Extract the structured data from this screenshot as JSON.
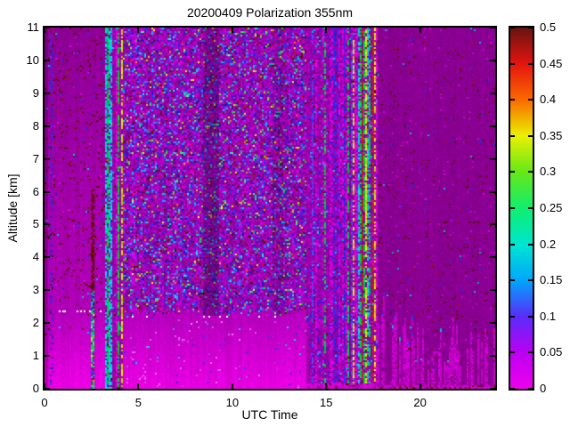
{
  "figure": {
    "background": "#ffffff"
  },
  "chart_data": {
    "type": "heatmap",
    "title": "20200409 Polarization 355nm",
    "xlabel": "UTC Time",
    "ylabel": "Altitude [km]",
    "xlim": [
      0,
      24
    ],
    "ylim": [
      0,
      11
    ],
    "xticks": [
      0,
      5,
      10,
      15,
      20
    ],
    "xtick_labels": [
      "0",
      "5",
      "10",
      "15",
      "20"
    ],
    "yticks": [
      0,
      1,
      2,
      3,
      4,
      5,
      6,
      7,
      8,
      9,
      10,
      11
    ],
    "ytick_labels": [
      "0",
      "1",
      "2",
      "3",
      "4",
      "5",
      "6",
      "7",
      "8",
      "9",
      "10",
      "11"
    ],
    "grid_on": false,
    "legend": "none",
    "colorbar": {
      "position": "right",
      "vmin": 0,
      "vmax": 0.5,
      "ticks": [
        0,
        0.05,
        0.1,
        0.15,
        0.2,
        0.25,
        0.3,
        0.35,
        0.4,
        0.45,
        0.5
      ],
      "tick_labels": [
        "0",
        "0.05",
        "0.1",
        "0.15",
        "0.2",
        "0.25",
        "0.3",
        "0.35",
        "0.4",
        "0.45",
        "0.5"
      ],
      "stops": [
        [
          0.0,
          "#ee00ee"
        ],
        [
          0.05,
          "#bc00f2"
        ],
        [
          0.1,
          "#5a2cfa"
        ],
        [
          0.15,
          "#00a6fc"
        ],
        [
          0.2,
          "#00e6d0"
        ],
        [
          0.25,
          "#10ee6e"
        ],
        [
          0.3,
          "#66e818"
        ],
        [
          0.35,
          "#eaf000"
        ],
        [
          0.4,
          "#fa6a00"
        ],
        [
          0.45,
          "#e41410"
        ],
        [
          0.5,
          "#661410"
        ]
      ]
    },
    "seed": 20200409,
    "grid": {
      "cols": 253,
      "rows": 203
    },
    "layers": [
      {
        "kind": "vgrad",
        "name": "left-upper-gradient",
        "t": [
          0,
          3.25
        ],
        "a": [
          2.4,
          11
        ],
        "bottom": "#b200ba",
        "top": "#8e0096",
        "jitter": 0.05,
        "col_jitter": 0.04,
        "edge_wobble": 0
      },
      {
        "kind": "vgrad",
        "name": "left-lower-gradient",
        "t": [
          0,
          3.25
        ],
        "a": [
          0,
          2.4
        ],
        "bottom": "#ee00e6",
        "top": "#b200ba",
        "jitter": 0.04,
        "col_jitter": 0.03,
        "edge_wobble": 0.1
      },
      {
        "kind": "noise",
        "name": "left-maroon-speckle",
        "t": [
          0,
          3.25
        ],
        "a": [
          3,
          11
        ],
        "palette": [
          [
            null,
            93
          ],
          [
            "#5e0c08",
            4.2
          ],
          [
            "#8c1810",
            1.2
          ],
          [
            "#2830d0",
            0.6
          ],
          [
            "#00b0d0",
            0.3
          ],
          [
            "#d800e0",
            0.7
          ]
        ],
        "jitter": 0.15
      },
      {
        "kind": "noise",
        "name": "left-maroon-speckle-low",
        "t": [
          0,
          3.25
        ],
        "a": [
          1.6,
          3
        ],
        "palette": [
          [
            null,
            96.5
          ],
          [
            "#5e0c08",
            1.8
          ],
          [
            "#b81690",
            0.7
          ],
          [
            "#2830d0",
            0.5
          ],
          [
            "#00b0d0",
            0.2
          ],
          [
            "#ff60f0",
            0.3
          ]
        ],
        "jitter": 0.15
      },
      {
        "kind": "colstripes",
        "name": "faint-indigo-line",
        "t": [
          0.3,
          0.44
        ],
        "a": [
          0,
          11
        ],
        "stripe_prob": 1,
        "col_palette": [
          [
            "#5020c8",
            1
          ]
        ],
        "gap_prob": 0.62
      },
      {
        "kind": "noise",
        "name": "calib-stripe-green",
        "t": [
          2.48,
          2.68
        ],
        "a": [
          0,
          2.62
        ],
        "palette": [
          [
            "#00d838",
            30
          ],
          [
            "#00c8e0",
            16
          ],
          [
            "#c8d800",
            15
          ],
          [
            "#3040f0",
            10
          ],
          [
            "#c02010",
            7
          ],
          [
            "#e000e0",
            10
          ],
          [
            "#8a0093",
            12
          ]
        ],
        "jitter": 0.15
      },
      {
        "kind": "noise",
        "name": "calib-stripe-maroon",
        "t": [
          2.48,
          2.66
        ],
        "a": [
          2.62,
          6.1
        ],
        "palette": [
          [
            "#5f0d08",
            62
          ],
          [
            "#7a1008",
            12
          ],
          [
            null,
            26
          ]
        ],
        "jitter": 0.18
      },
      {
        "kind": "noise",
        "name": "calib-stripe-bluetip",
        "t": [
          2.48,
          2.68
        ],
        "a": [
          2.35,
          3.0
        ],
        "palette": [
          [
            "#2838e8",
            35
          ],
          [
            "#00b8e0",
            22
          ],
          [
            "#00d040",
            12
          ],
          [
            "#5f0d08",
            18
          ],
          [
            null,
            13
          ]
        ],
        "jitter": 0.15
      },
      {
        "kind": "colstripes",
        "name": "morning-stripes",
        "t": [
          3.25,
          4.2
        ],
        "a": [
          0,
          11
        ],
        "stripe_prob": 1,
        "col_palette": [
          [
            "#00d024",
            20
          ],
          [
            "#c8d800",
            12
          ],
          [
            "#00c8e0",
            12
          ],
          [
            "#2840f0",
            14
          ],
          [
            "#c82010",
            5
          ],
          [
            "#a000b0",
            30
          ],
          [
            "#e000e0",
            7
          ]
        ],
        "gap_prob": 0.33,
        "gap_palette": [
          [
            "#9800a8",
            58
          ],
          [
            "#b400c4",
            24
          ],
          [
            "#2828e0",
            8
          ],
          [
            "#00b8d8",
            4
          ],
          [
            "#d01810",
            3
          ],
          [
            "#5e0c08",
            3
          ]
        ]
      },
      {
        "kind": "noise",
        "name": "midday-speckle",
        "t": [
          4.2,
          13.95
        ],
        "a": [
          2.2,
          11
        ],
        "palette": [
          [
            "#a800b8",
            26
          ],
          [
            "#c000cc",
            14
          ],
          [
            "#9000a0",
            12
          ],
          [
            "#7c00ac",
            8
          ],
          [
            "#d000dc",
            6
          ],
          [
            "#6a0a70",
            4
          ],
          [
            "#3232ee",
            7
          ],
          [
            "#5858ff",
            3
          ],
          [
            "#1a1ac8",
            3
          ],
          [
            "#00aaf4",
            3
          ],
          [
            "#00e0e0",
            2
          ],
          [
            "#00d868",
            1.5
          ],
          [
            "#58e428",
            1.2
          ],
          [
            "#d8e410",
            1
          ],
          [
            "#f07800",
            0.5
          ],
          [
            "#d01810",
            1
          ],
          [
            "#601008",
            2.2
          ],
          [
            "#8c2850",
            1.5
          ]
        ],
        "jitter": 0.12,
        "col_jitter": 0.05
      },
      {
        "kind": "vgrad",
        "name": "boundary-layer-band",
        "t": [
          4.2,
          14.15
        ],
        "a": [
          0,
          2.3
        ],
        "bottom": "#ea00e4",
        "top": "#b400bc",
        "jitter": 0.04,
        "col_jitter": 0.035,
        "edge_wobble": 0.12
      },
      {
        "kind": "noise",
        "name": "boundary-layer-dots",
        "t": [
          4.2,
          14.15
        ],
        "a": [
          0,
          2.2
        ],
        "palette": [
          [
            null,
            97
          ],
          [
            "#d858e0",
            1.2
          ],
          [
            "#b830d8",
            0.6
          ],
          [
            "#3038e8",
            0.6
          ],
          [
            "#00c8d8",
            0.3
          ],
          [
            "#ff80ff",
            0.3
          ]
        ],
        "jitter": 0.1
      },
      {
        "kind": "colstripes",
        "name": "afternoon-stripes-blue",
        "t": [
          13.95,
          16.4
        ],
        "a": [
          0,
          11
        ],
        "stripe_prob": 0.75,
        "col_palette": [
          [
            "#d800dc",
            26
          ],
          [
            "#2830e8",
            20
          ],
          [
            "#5048f8",
            8
          ],
          [
            "#7a00b0",
            14
          ],
          [
            "#00c830",
            8
          ],
          [
            "#00c8e0",
            6
          ],
          [
            "#9b00a8",
            18
          ]
        ],
        "gap_prob": 0.5,
        "gap_palette": [
          [
            "#9800a8",
            50
          ],
          [
            "#b400c4",
            18
          ],
          [
            "#8000a0",
            12
          ],
          [
            "#2828e8",
            8
          ],
          [
            "#d800dc",
            7
          ],
          [
            "#00b8d8",
            3
          ],
          [
            "#601008",
            2
          ]
        ]
      },
      {
        "kind": "colstripes",
        "name": "afternoon-stripes-bright",
        "t": [
          16.4,
          17.75
        ],
        "a": [
          0,
          11
        ],
        "stripe_prob": 0.9,
        "col_palette": [
          [
            "#00d030",
            18
          ],
          [
            "#00c8e0",
            14
          ],
          [
            "#2840f0",
            16
          ],
          [
            "#d8d800",
            9
          ],
          [
            "#d800dc",
            18
          ],
          [
            "#c02010",
            4
          ],
          [
            "#9b00a8",
            14
          ],
          [
            "#7a00b0",
            7
          ]
        ],
        "gap_prob": 0.38,
        "gap_palette": [
          [
            "#9800a8",
            50
          ],
          [
            "#b400c4",
            18
          ],
          [
            "#8000a0",
            12
          ],
          [
            "#2828e8",
            8
          ],
          [
            "#d800dc",
            7
          ],
          [
            "#00b8d8",
            3
          ],
          [
            "#601008",
            2
          ]
        ]
      },
      {
        "kind": "noise",
        "name": "bottom-bright-row-mid",
        "t": [
          13.95,
          17.75
        ],
        "a": [
          0,
          0.15
        ],
        "palette": [
          [
            "#d800d8",
            75
          ],
          [
            "#9800a8",
            15
          ],
          [
            "#5e0c08",
            10
          ]
        ],
        "jitter": 0.08
      },
      {
        "kind": "noise",
        "name": "evening-smooth",
        "t": [
          17.75,
          24
        ],
        "a": [
          0,
          11
        ],
        "palette": [
          [
            "#8a0092",
            96.4
          ],
          [
            "#5e0c08",
            1.6
          ],
          [
            "#981010",
            0.3
          ],
          [
            "#2830d0",
            0.4
          ],
          [
            "#00b0d0",
            0.2
          ],
          [
            "#c800d0",
            1.1
          ]
        ],
        "jitter": 0.07,
        "col_jitter": 0.03
      },
      {
        "kind": "bottomstripes",
        "name": "evening-low-returns",
        "t": [
          17.75,
          24
        ],
        "stripe_prob": 0.6,
        "color": "#c600ca",
        "h_range": [
          0.7,
          2.2
        ],
        "gap_prob": 0.15,
        "jitter": 0.12,
        "tip_prob": 0.12,
        "tip_palette": [
          [
            "#3040f0",
            0.5
          ],
          [
            "#00c0e0",
            0.3
          ],
          [
            "#00d060",
            0.2
          ]
        ],
        "tall_zone": {
          "t": [
            17.9,
            19.7
          ],
          "h_range": [
            1.3,
            3.0
          ],
          "tip_prob": 0.35
        }
      },
      {
        "kind": "noise",
        "name": "bottom-bright-row-evening",
        "t": [
          17.75,
          24
        ],
        "a": [
          0,
          0.12
        ],
        "palette": [
          [
            "#d000d0",
            68
          ],
          [
            "#5e0c08",
            17
          ],
          [
            "#8a0092",
            15
          ]
        ],
        "jitter": 0.1
      },
      {
        "kind": "darken",
        "name": "dark-band-9utc",
        "t": [
          8.4,
          9.25
        ],
        "a": [
          2.2,
          11
        ],
        "alpha": 0.28
      },
      {
        "kind": "darken",
        "name": "dark-band-12utc",
        "t": [
          12.15,
          12.7
        ],
        "a": [
          2.2,
          11
        ],
        "alpha": 0.12
      },
      {
        "kind": "darken",
        "name": "dark-band-0utc",
        "t": [
          0,
          0.22
        ],
        "a": [
          0,
          11
        ],
        "alpha": 0.22
      }
    ]
  }
}
